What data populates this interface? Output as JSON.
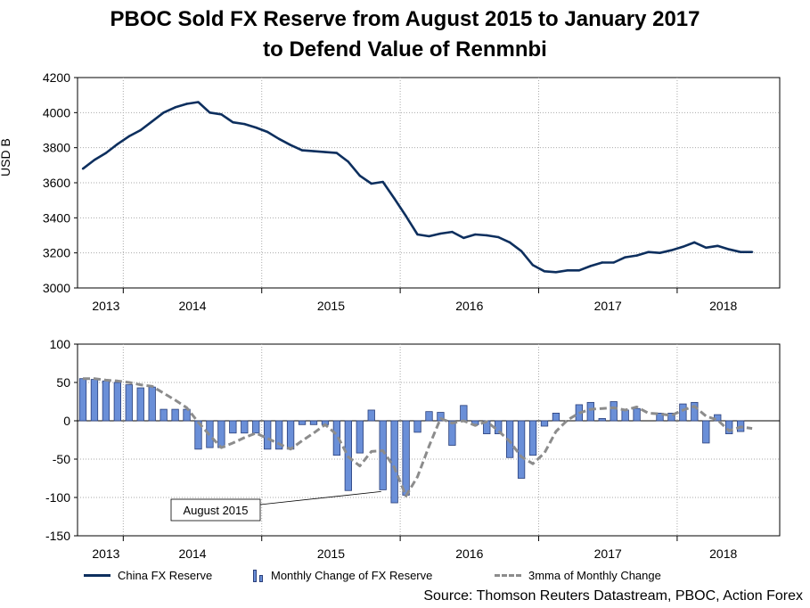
{
  "title_line1": "PBOC Sold FX Reserve from August 2015 to January 2017",
  "title_line2": "to Defend Value of Renmnbi",
  "source": "Source: Thomson Reuters Datastream, PBOC, Action Forex",
  "colors": {
    "reserve_line": "#0d2f5e",
    "bar": "#6a8fd8",
    "bar_edge": "#2a3f7a",
    "mma_line": "#8c8c8c",
    "grid": "#aaaaaa"
  },
  "chart_data": [
    {
      "type": "line",
      "ylabel": "USD B",
      "ylim": [
        3000,
        4200
      ],
      "yticks": [
        3000,
        3200,
        3400,
        3600,
        3800,
        4000,
        4200
      ],
      "x_year_labels": [
        "2013",
        "2014",
        "2015",
        "2016",
        "2017",
        "2018"
      ],
      "x_start": "2013-06",
      "grid": true,
      "series": [
        {
          "name": "China FX Reserve",
          "values": [
            3680,
            3730,
            3770,
            3820,
            3865,
            3900,
            3950,
            4000,
            4030,
            4050,
            4060,
            4000,
            3990,
            3945,
            3935,
            3915,
            3890,
            3850,
            3815,
            3785,
            3780,
            3775,
            3770,
            3720,
            3640,
            3595,
            3605,
            3510,
            3410,
            3305,
            3295,
            3310,
            3320,
            3285,
            3305,
            3300,
            3290,
            3260,
            3210,
            3130,
            3095,
            3090,
            3100,
            3100,
            3125,
            3145,
            3145,
            3175,
            3185,
            3205,
            3200,
            3215,
            3235,
            3260,
            3230,
            3240,
            3220,
            3205,
            3205
          ]
        }
      ]
    },
    {
      "type": "bar",
      "ylim": [
        -150,
        100
      ],
      "yticks": [
        -150,
        -100,
        -50,
        0,
        50,
        100
      ],
      "x_year_labels": [
        "2013",
        "2014",
        "2015",
        "2016",
        "2017",
        "2018"
      ],
      "x_start": "2013-06",
      "grid": true,
      "annotation": "August 2015",
      "series": [
        {
          "name": "Monthly Change of FX Reserve",
          "values": [
            55,
            54,
            52,
            50,
            47,
            43,
            44,
            15,
            15,
            15,
            -37,
            -35,
            -35,
            -16,
            -16,
            -16,
            -37,
            -37,
            -37,
            -5,
            -5,
            -5,
            -45,
            -91,
            -42,
            14,
            -90,
            -107,
            -97,
            -15,
            12,
            11,
            -32,
            20,
            -5,
            -17,
            -17,
            -48,
            -75,
            -45,
            -7,
            10,
            0,
            21,
            24,
            3,
            25,
            14,
            16,
            0,
            10,
            10,
            22,
            24,
            -29,
            8,
            -17,
            -14,
            0
          ]
        },
        {
          "name": "3mma of Monthly Change",
          "values": [
            55,
            55,
            53,
            52,
            50,
            47,
            45,
            36,
            27,
            17,
            -2,
            -19,
            -35,
            -29,
            -22,
            -16,
            -23,
            -30,
            -37,
            -26,
            -16,
            -5,
            -18,
            -47,
            -59,
            -40,
            -39,
            -61,
            -98,
            -73,
            -33,
            3,
            -3,
            0,
            -6,
            -1,
            -13,
            -27,
            -47,
            -56,
            -42,
            -14,
            1,
            10,
            15,
            16,
            17,
            14,
            18,
            10,
            9,
            7,
            14,
            19,
            6,
            1,
            -13,
            -8,
            -10
          ]
        }
      ]
    }
  ]
}
